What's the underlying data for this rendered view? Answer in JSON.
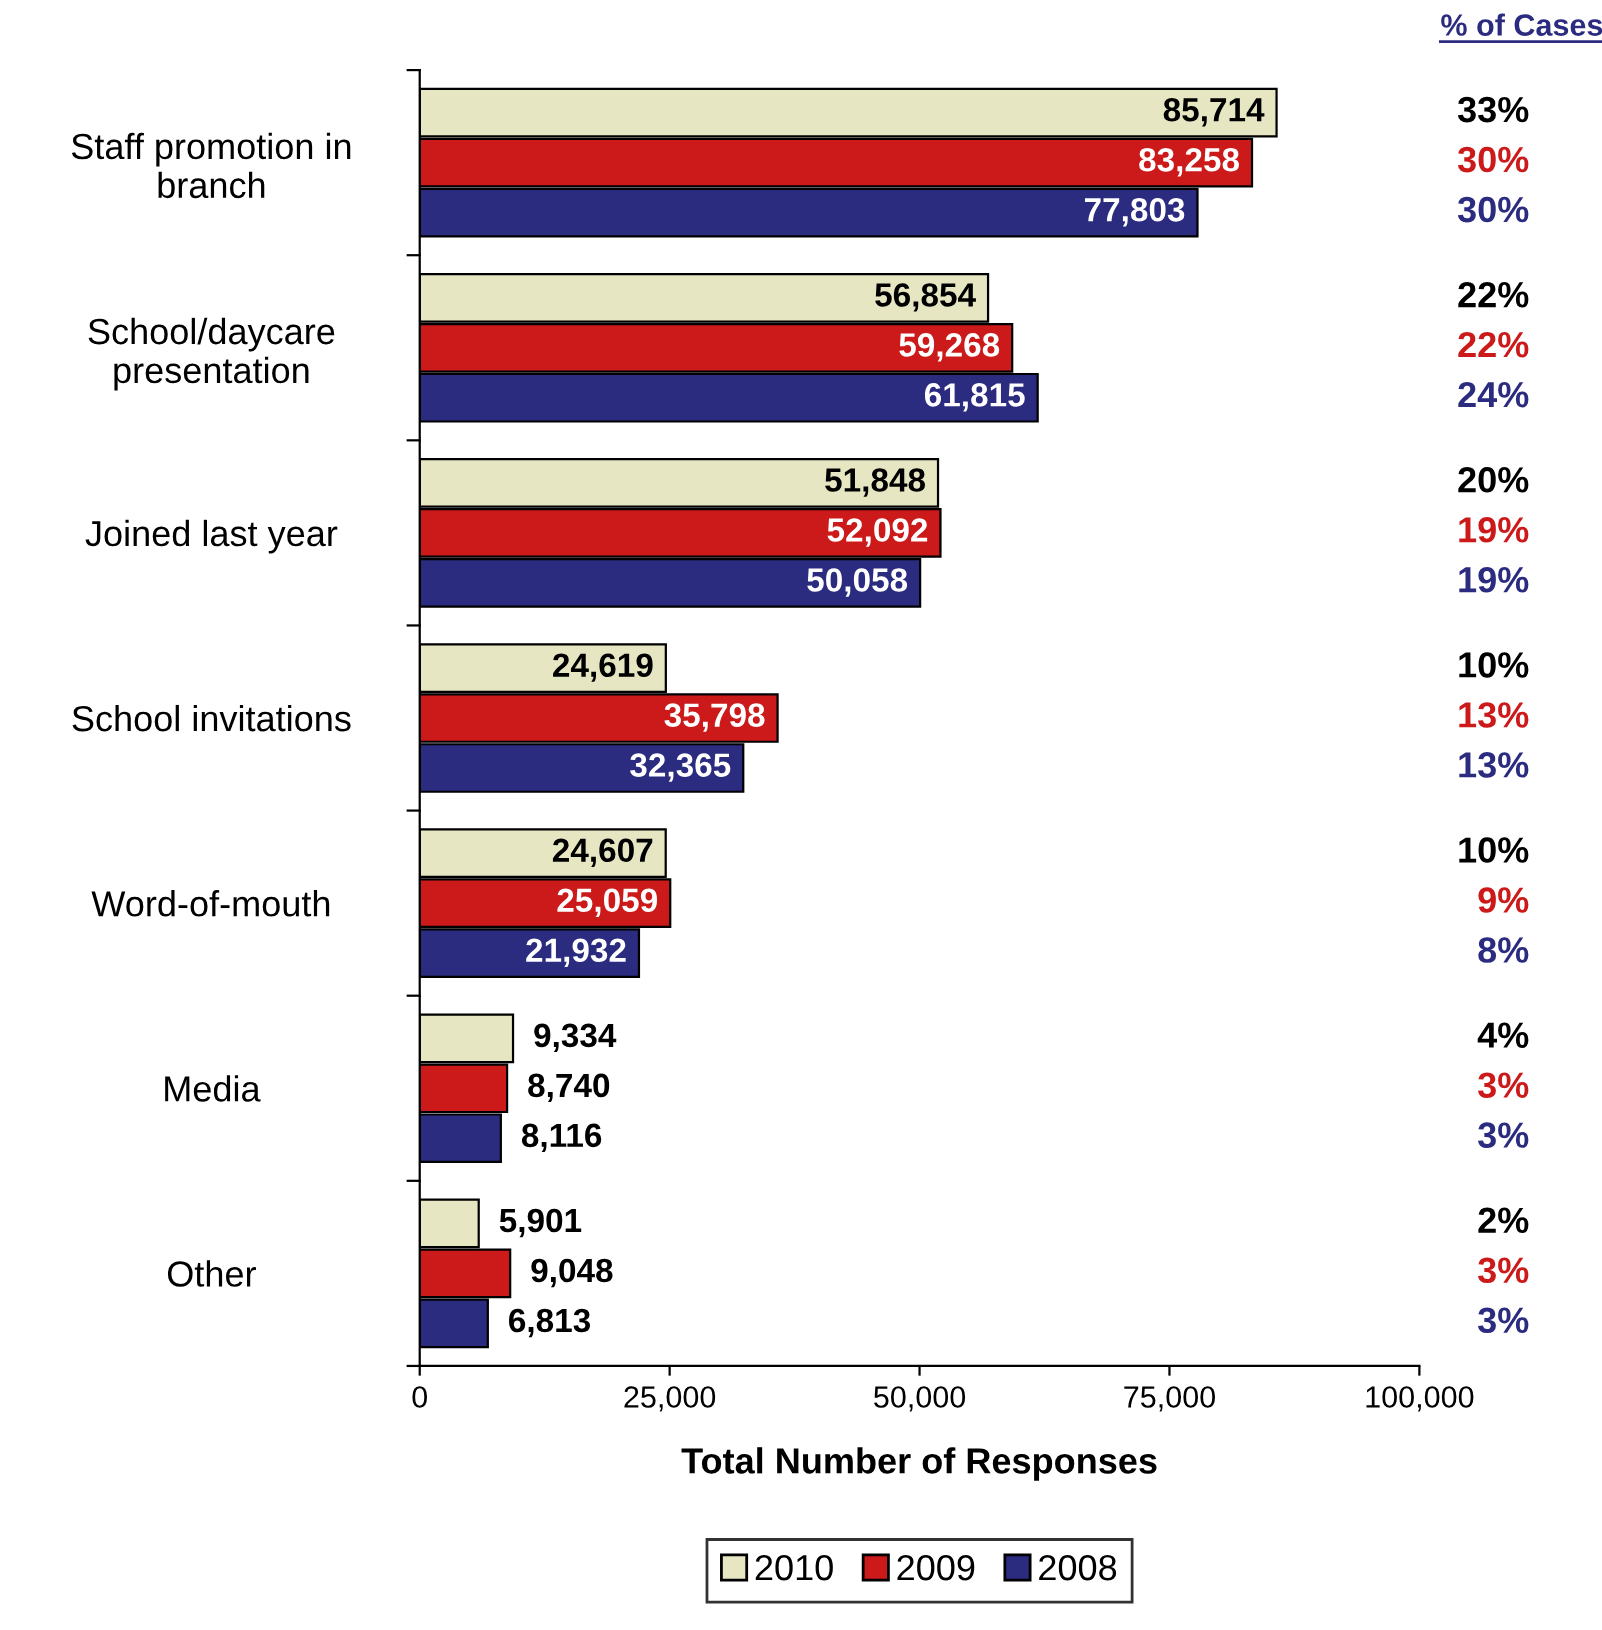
{
  "chart_data": {
    "type": "bar",
    "orientation": "horizontal",
    "xlabel": "Total Number of Responses",
    "categories": [
      "Staff promotion in branch",
      "School/daycare presentation",
      "Joined last year",
      "School invitations",
      "Word-of-mouth",
      "Media",
      "Other"
    ],
    "series": [
      {
        "name": "2010",
        "color": "#e6e6c3",
        "values": [
          85714,
          56854,
          51848,
          24619,
          24607,
          9334,
          5901
        ],
        "value_labels": [
          "85,714",
          "56,854",
          "51,848",
          "24,619",
          "24,607",
          "9,334",
          "5,901"
        ]
      },
      {
        "name": "2009",
        "color": "#cc1a1a",
        "values": [
          83258,
          59268,
          52092,
          35798,
          25059,
          8740,
          9048
        ],
        "value_labels": [
          "83,258",
          "59,268",
          "52,092",
          "35,798",
          "25,059",
          "8,740",
          "9,048"
        ]
      },
      {
        "name": "2008",
        "color": "#2b2b80",
        "values": [
          77803,
          61815,
          50058,
          32365,
          21932,
          8116,
          6813
        ],
        "value_labels": [
          "77,803",
          "61,815",
          "50,058",
          "32,365",
          "21,932",
          "8,116",
          "6,813"
        ]
      }
    ],
    "xlim": [
      0,
      100000
    ],
    "xticks": [
      0,
      {
        "value": 25000,
        "label": "25,000"
      },
      {
        "value": 50000,
        "label": "50,000"
      },
      {
        "value": 75000,
        "label": "75,000"
      },
      {
        "value": 100000,
        "label": "100,000"
      }
    ],
    "grid": false,
    "legend": "bottom",
    "annotations": [
      "% of Cases",
      "33%",
      "30%",
      "30%",
      "22%",
      "22%",
      "24%",
      "20%",
      "19%",
      "19%",
      "10%",
      "13%",
      "13%",
      "10%",
      "9%",
      "8%",
      "4%",
      "3%",
      "3%",
      "2%",
      "3%",
      "3%"
    ]
  }
}
